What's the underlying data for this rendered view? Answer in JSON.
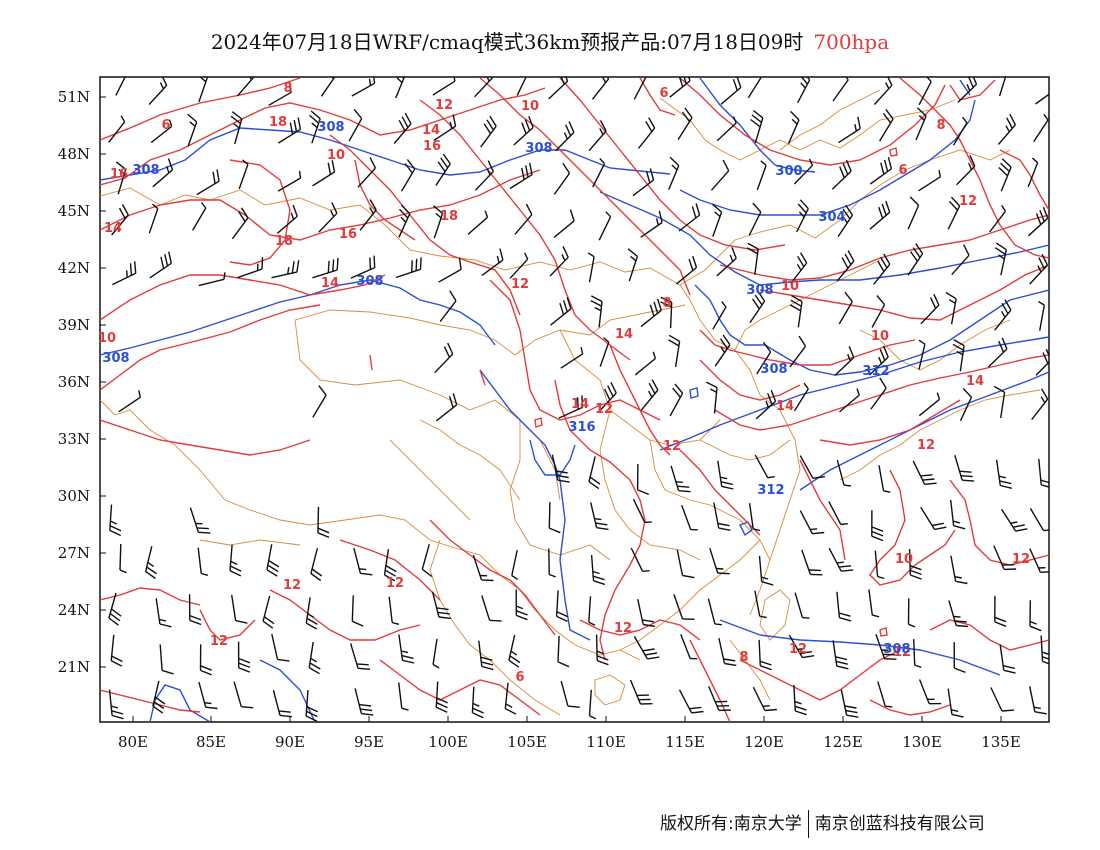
{
  "header": {
    "title": "2024年07月18日WRF/cmaq模式36km预报产品:07月18日09时",
    "level": "700hpa"
  },
  "axes": {
    "lat_labels": [
      "51N",
      "48N",
      "45N",
      "42N",
      "39N",
      "36N",
      "33N",
      "30N",
      "27N",
      "24N",
      "21N"
    ],
    "lon_labels": [
      "80E",
      "85E",
      "90E",
      "95E",
      "100E",
      "105E",
      "110E",
      "115E",
      "120E",
      "125E",
      "130E",
      "135E"
    ]
  },
  "legend_colors": {
    "temperature": "#e23b3b",
    "geopotential": "#2a4fd6",
    "border": "#d98a3a",
    "wind": "#111111"
  },
  "contour_labels": {
    "red": [
      "8",
      "6",
      "18",
      "12",
      "10",
      "14",
      "16",
      "10",
      "6",
      "8",
      "6",
      "16",
      "18",
      "14",
      "18",
      "16",
      "12",
      "14",
      "10",
      "8",
      "10",
      "10",
      "14",
      "14",
      "12",
      "14",
      "14",
      "12",
      "12",
      "10",
      "12",
      "12",
      "12",
      "12",
      "12",
      "6",
      "8",
      "12",
      "12",
      "12"
    ],
    "blue": [
      "308",
      "308",
      "308",
      "300",
      "304",
      "308",
      "308",
      "308",
      "308",
      "312",
      "316",
      "312",
      "308"
    ]
  },
  "footer": {
    "copyright": "版权所有:南京大学",
    "company": "南京创蓝科技有限公司"
  }
}
